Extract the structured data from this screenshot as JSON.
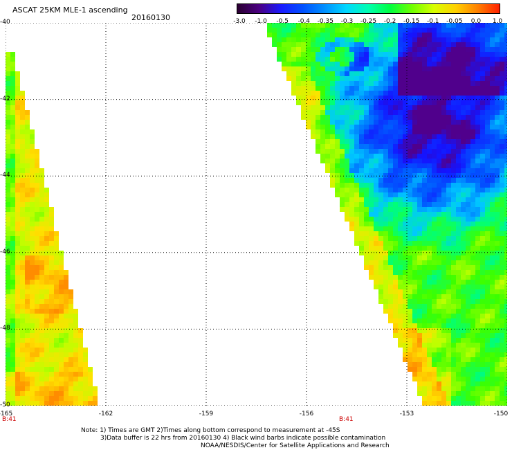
{
  "header": {
    "title": "ASCAT 25KM MLE-1 ascending",
    "date": "20160130"
  },
  "colorbar": {
    "labels": [
      "-3.0",
      "-1.0",
      "-0.5",
      "-0.4",
      "-0.35",
      "-0.3",
      "-0.25",
      "-0.2",
      "-0.15",
      "-0.1",
      "-0.05",
      "0.0",
      "1.0"
    ],
    "colors": [
      "#2a0030",
      "#4b0082",
      "#1a1aff",
      "#0050ff",
      "#0090ff",
      "#00d8ff",
      "#00ffb0",
      "#00ff40",
      "#70ff00",
      "#d8ff00",
      "#ffd000",
      "#ff8000",
      "#ff2000"
    ]
  },
  "axes": {
    "latitudes": [
      "-40",
      "-42",
      "-44",
      "-46",
      "-48",
      "-50"
    ],
    "longitudes": [
      "-165",
      "-162",
      "-159",
      "-156",
      "-153",
      "-150"
    ],
    "lat_range": [
      -50,
      -40
    ],
    "lon_range": [
      -165,
      -150
    ]
  },
  "pass_labels": [
    "B:41",
    "B:41"
  ],
  "footer": {
    "line1": "Note: 1) Times are GMT 2)Times along bottom correspond to measurement at -45S",
    "line2": "3)Data buffer is 22 hrs from 20160130 4) Black wind barbs indicate possible contamination",
    "line3": "NOAA/NESDIS/Center for Satellite Applications and Research"
  }
}
